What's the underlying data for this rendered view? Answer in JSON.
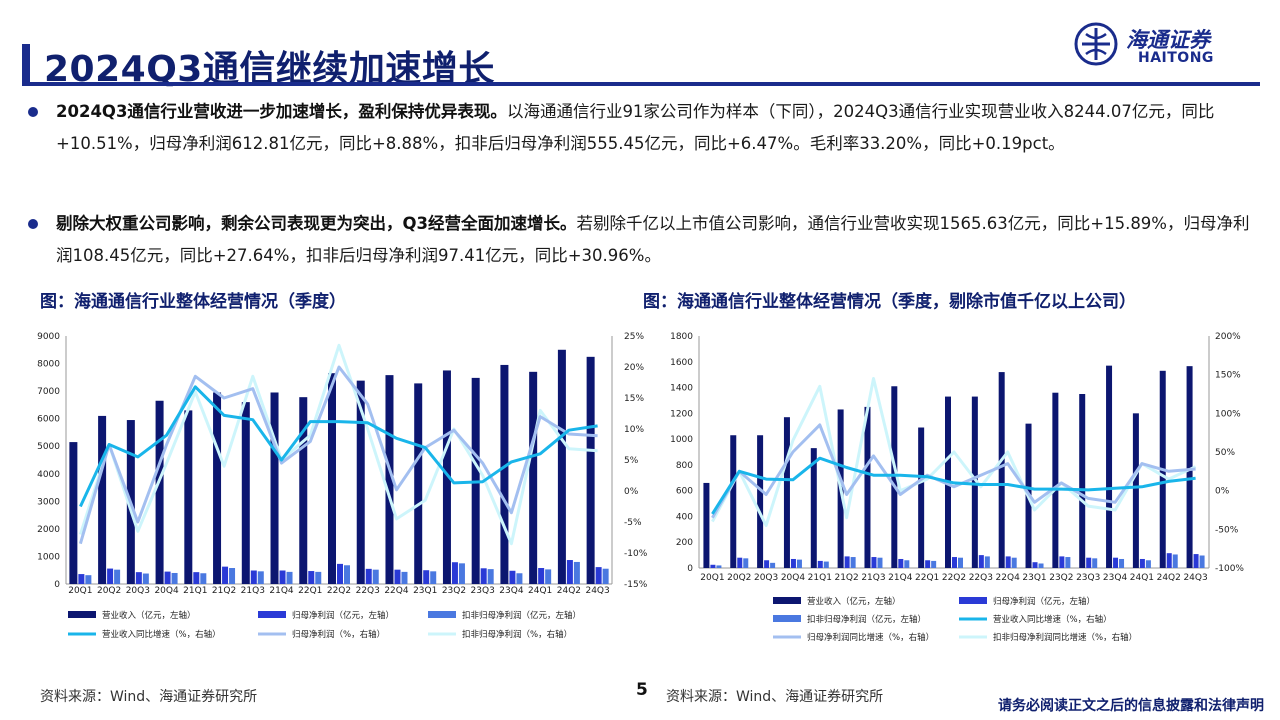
{
  "title": "2024Q3通信继续加速增长",
  "logo": {
    "cn": "海通证券",
    "en": "HAITONG"
  },
  "bullets": [
    {
      "bold": "2024Q3通信行业营收进一步加速增长，盈利保持优异表现。",
      "text": "以海通通信行业91家公司作为样本（下同），2024Q3通信行业实现营业收入8244.07亿元，同比+10.51%，归母净利润612.81亿元，同比+8.88%，扣非后归母净利润555.45亿元，同比+6.47%。毛利率33.20%，同比+0.19pct。"
    },
    {
      "bold": "剔除大权重公司影响，剩余公司表现更为突出，Q3经营全面加速增长。",
      "text": "若剔除千亿以上市值公司影响，通信行业营收实现1565.63亿元，同比+15.89%，归母净利润108.45亿元，同比+27.64%，扣非后归母净利润97.41亿元，同比+30.96%。"
    }
  ],
  "chart_captions": [
    "图：海通通信行业整体经营情况（季度）",
    "图：海通通信行业整体经营情况（季度，剔除市值千亿以上公司）"
  ],
  "sources": [
    "资料来源：Wind、海通证券研究所",
    "资料来源：Wind、海通证券研究所"
  ],
  "page_number": "5",
  "disclaimer": "请务必阅读正文之后的信息披露和法律声明",
  "colors": {
    "revenue_bar": "#0c1670",
    "net_profit_bar": "#2a3ad6",
    "deducted_profit_bar": "#4a78e0",
    "revenue_growth_line": "#19b5ea",
    "net_profit_growth_line": "#a3bff0",
    "deducted_growth_line": "#cdf5fb"
  },
  "chart_data": [
    {
      "type": "bar",
      "categories": [
        "20Q1",
        "20Q2",
        "20Q3",
        "20Q4",
        "21Q1",
        "21Q2",
        "21Q3",
        "21Q4",
        "22Q1",
        "22Q2",
        "22Q3",
        "22Q4",
        "23Q1",
        "23Q2",
        "23Q3",
        "23Q4",
        "24Q1",
        "24Q2",
        "24Q3"
      ],
      "y_left": {
        "min": 0,
        "max": 9000,
        "ticks": [
          "0",
          "1000",
          "2000",
          "3000",
          "4000",
          "5000",
          "6000",
          "7000",
          "8000",
          "9000"
        ]
      },
      "y_right": {
        "min": -15,
        "max": 25,
        "ticks": [
          "-15%",
          "-10%",
          "-5%",
          "0%",
          "5%",
          "10%",
          "15%",
          "20%",
          "25%"
        ]
      },
      "series": [
        {
          "name": "营业收入（亿元，左轴）",
          "kind": "bar",
          "axis": "left",
          "values": [
            5150,
            6100,
            5950,
            6650,
            6300,
            6950,
            6600,
            6950,
            6780,
            7650,
            7380,
            7580,
            7280,
            7750,
            7480,
            7950,
            7700,
            8500,
            8244
          ]
        },
        {
          "name": "归母净利润（亿元，左轴）",
          "kind": "bar",
          "axis": "left",
          "values": [
            360,
            560,
            430,
            450,
            430,
            630,
            490,
            490,
            470,
            730,
            550,
            520,
            500,
            790,
            570,
            480,
            580,
            870,
            613
          ]
        },
        {
          "name": "扣非归母净利润（亿元，左轴）",
          "kind": "bar",
          "axis": "left",
          "values": [
            320,
            520,
            380,
            400,
            390,
            580,
            460,
            440,
            440,
            680,
            520,
            440,
            460,
            750,
            540,
            390,
            530,
            800,
            555
          ]
        },
        {
          "name": "营业收入同比增速（%，右轴）",
          "kind": "line",
          "axis": "right",
          "values": [
            -2.5,
            7.5,
            5.5,
            9,
            16.8,
            12.2,
            11.5,
            5,
            11.2,
            11.2,
            11,
            8.5,
            7,
            1.3,
            1.5,
            4.7,
            6,
            9.8,
            10.5
          ]
        },
        {
          "name": "归母净利润（%，右轴）",
          "kind": "line",
          "axis": "right",
          "values": [
            -8.5,
            7.5,
            -5,
            7.5,
            18.5,
            15,
            16.5,
            4.5,
            8,
            20,
            14,
            0.2,
            7,
            9.8,
            4.5,
            -3.5,
            12,
            9.2,
            8.9
          ]
        },
        {
          "name": "扣非归母净利润（%，右轴）",
          "kind": "line",
          "axis": "right",
          "values": [
            -7,
            7.5,
            -6.5,
            4.5,
            16,
            4,
            18.5,
            5,
            9,
            23.5,
            10,
            -4.5,
            -1.5,
            10,
            2.5,
            -8.5,
            13,
            6.8,
            6.5
          ]
        }
      ]
    },
    {
      "type": "bar",
      "categories": [
        "20Q1",
        "20Q2",
        "20Q3",
        "20Q4",
        "21Q1",
        "21Q2",
        "21Q3",
        "21Q4",
        "22Q1",
        "22Q2",
        "22Q3",
        "22Q4",
        "23Q1",
        "23Q2",
        "23Q3",
        "23Q4",
        "24Q1",
        "24Q2",
        "24Q3"
      ],
      "y_left": {
        "min": 0,
        "max": 1800,
        "ticks": [
          "0",
          "200",
          "400",
          "600",
          "800",
          "1000",
          "1200",
          "1400",
          "1600",
          "1800"
        ]
      },
      "y_right": {
        "min": -100,
        "max": 200,
        "ticks": [
          "-100%",
          "-50%",
          "0%",
          "50%",
          "100%",
          "150%",
          "200%"
        ]
      },
      "series": [
        {
          "name": "营业收入（亿元，左轴）",
          "kind": "bar",
          "axis": "left",
          "values": [
            660,
            1030,
            1030,
            1170,
            930,
            1230,
            1250,
            1410,
            1090,
            1330,
            1330,
            1520,
            1120,
            1360,
            1350,
            1570,
            1200,
            1530,
            1566
          ]
        },
        {
          "name": "归母净利润（亿元，左轴）",
          "kind": "bar",
          "axis": "left",
          "values": [
            25,
            80,
            60,
            70,
            55,
            90,
            85,
            70,
            60,
            85,
            100,
            90,
            45,
            90,
            80,
            80,
            70,
            115,
            108
          ]
        },
        {
          "name": "扣非归母净利润（亿元，左轴）",
          "kind": "bar",
          "axis": "left",
          "values": [
            20,
            75,
            40,
            65,
            50,
            85,
            80,
            60,
            55,
            80,
            90,
            80,
            35,
            85,
            75,
            70,
            60,
            105,
            97
          ]
        },
        {
          "name": "营业收入同比增速（%，右轴）",
          "kind": "line",
          "axis": "right",
          "values": [
            -30,
            25,
            15,
            14,
            42,
            30,
            20,
            20,
            18,
            10,
            8,
            8,
            2,
            2,
            1,
            3,
            5,
            12,
            16
          ]
        },
        {
          "name": "归母净利润同比增速（%，右轴）",
          "kind": "line",
          "axis": "right",
          "values": [
            -35,
            25,
            -5,
            50,
            85,
            -5,
            45,
            -5,
            20,
            5,
            20,
            35,
            -15,
            10,
            -10,
            -15,
            35,
            25,
            28
          ]
        },
        {
          "name": "扣非归母净利润同比增速（%，右轴）",
          "kind": "line",
          "axis": "right",
          "values": [
            -40,
            25,
            -45,
            65,
            135,
            -35,
            145,
            0,
            15,
            50,
            5,
            50,
            -25,
            10,
            -20,
            -25,
            35,
            15,
            31
          ]
        }
      ]
    }
  ]
}
